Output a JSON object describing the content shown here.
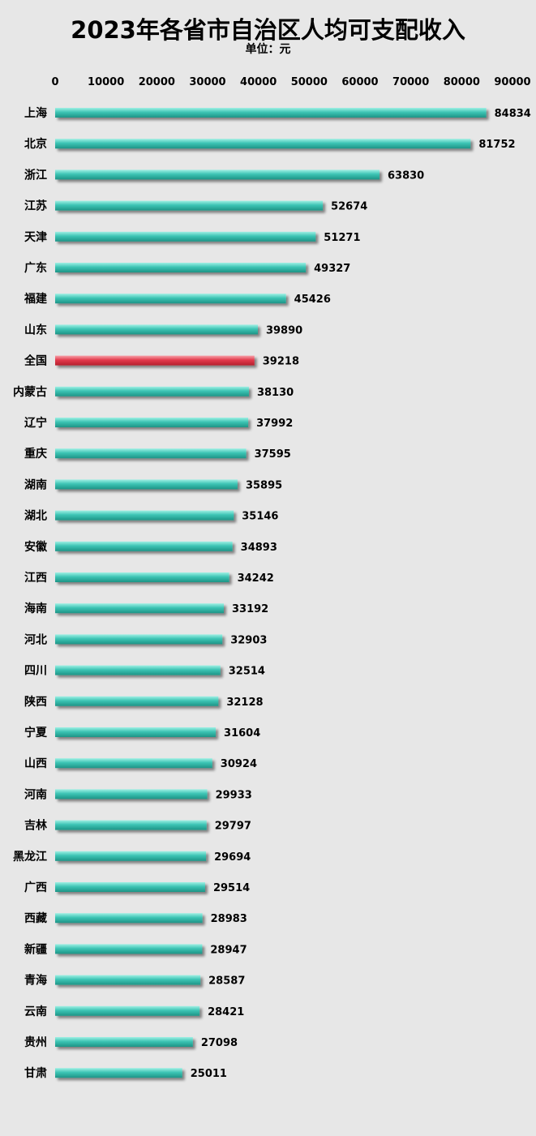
{
  "chart_data": {
    "type": "bar",
    "orientation": "horizontal",
    "title": "2023年各省市自治区人均可支配收入",
    "subtitle": "单位：元",
    "xlim": [
      0,
      90000
    ],
    "x_ticks": [
      "0",
      "10000",
      "20000",
      "30000",
      "40000",
      "50000",
      "60000",
      "70000",
      "80000",
      "90000"
    ],
    "x_axis_position": "top",
    "grid": false,
    "categories": [
      "上海",
      "北京",
      "浙江",
      "江苏",
      "天津",
      "广东",
      "福建",
      "山东",
      "全国",
      "内蒙古",
      "辽宁",
      "重庆",
      "湖南",
      "湖北",
      "安徽",
      "江西",
      "海南",
      "河北",
      "四川",
      "陕西",
      "宁夏",
      "山西",
      "河南",
      "吉林",
      "黑龙江",
      "广西",
      "西藏",
      "新疆",
      "青海",
      "云南",
      "贵州",
      "甘肃"
    ],
    "values": [
      84834,
      81752,
      63830,
      52674,
      51271,
      49327,
      45426,
      39890,
      39218,
      38130,
      37992,
      37595,
      35895,
      35146,
      34893,
      34242,
      33192,
      32903,
      32514,
      32128,
      31604,
      30924,
      29933,
      29797,
      29694,
      29514,
      28983,
      28947,
      28587,
      28421,
      27098,
      25011
    ],
    "value_labels": [
      "84834",
      "81752",
      "63830",
      "52674",
      "51271",
      "49327",
      "45426",
      "39890",
      "39218",
      "38130",
      "37992",
      "37595",
      "35895",
      "35146",
      "34893",
      "34242",
      "33192",
      "32903",
      "32514",
      "32128",
      "31604",
      "30924",
      "29933",
      "29797",
      "29694",
      "29514",
      "28983",
      "28947",
      "28587",
      "28421",
      "27098",
      "25011"
    ],
    "highlight_category": "全国",
    "colors": {
      "bar": "#3cc4b4",
      "highlight": "#e33a4c",
      "background": "#e7e7e7"
    }
  }
}
